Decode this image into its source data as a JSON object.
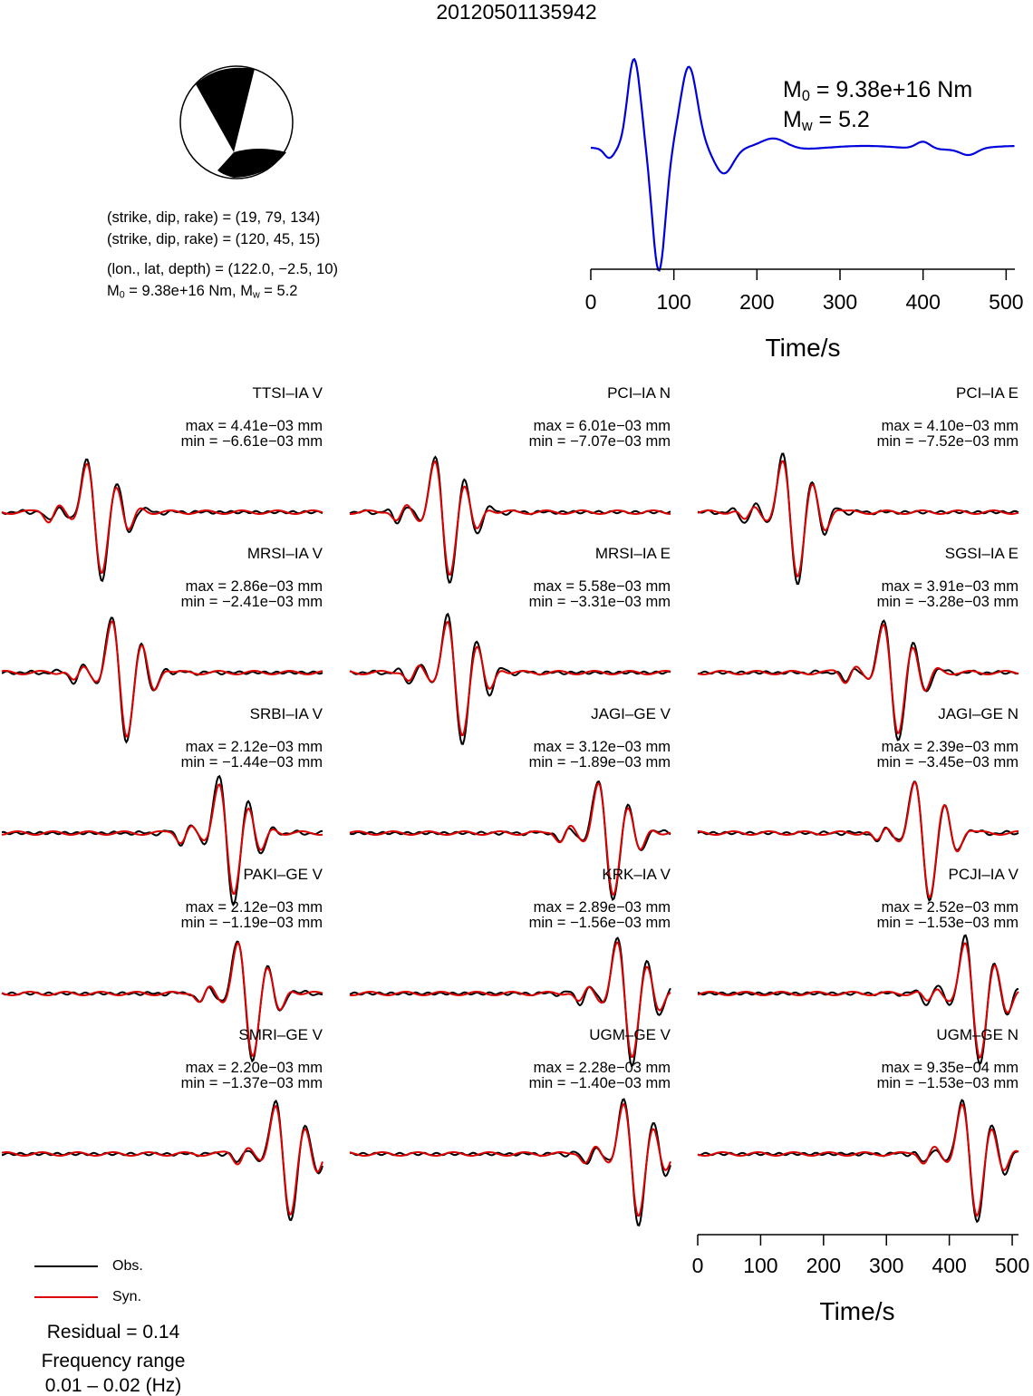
{
  "title": "20120501135942",
  "mechanism": {
    "line1": "(strike, dip, rake) = (19, 79, 134)",
    "line2": "(strike, dip, rake) = (120, 45, 15)",
    "line3": "(lon., lat, depth) = (122.0, −2.5, 10)",
    "m0_label": "M",
    "m0_value": " = 9.38e+16 Nm, M",
    "mw_value": " = 5.2"
  },
  "stf": {
    "m0_prefix": "M",
    "m0_sub": "0",
    "m0_text": " = 9.38e+16 Nm",
    "mw_prefix": "M",
    "mw_sub": "w",
    "mw_text": " = 5.2",
    "xlabel": "Time/s",
    "xticks": [
      "0",
      "100",
      "200",
      "300",
      "400",
      "500"
    ],
    "color": "#0000dd"
  },
  "chart_data": {
    "type": "line",
    "xlabel": "Time/s",
    "xlim": [
      0,
      510
    ],
    "xticks": [
      0,
      100,
      200,
      300,
      400,
      500
    ],
    "series_colors": {
      "Obs.": "#000000",
      "Syn.": "#dd0000"
    },
    "stations": [
      {
        "name": "TTSI–IA V",
        "max": "max = 4.41e−03 mm",
        "min": "min = −6.61e−03 mm",
        "center": 150
      },
      {
        "name": "PCI–IA N",
        "max": "max = 6.01e−03 mm",
        "min": "min = −7.07e−03 mm",
        "center": 150
      },
      {
        "name": "PCI–IA E",
        "max": "max = 4.10e−03 mm",
        "min": "min = −7.52e−03 mm",
        "center": 150
      },
      {
        "name": "MRSI–IA V",
        "max": "max = 2.86e−03 mm",
        "min": "min = −2.41e−03 mm",
        "center": 190
      },
      {
        "name": "MRSI–IA E",
        "max": "max = 5.58e−03 mm",
        "min": "min = −3.31e−03 mm",
        "center": 170
      },
      {
        "name": "SGSI–IA E",
        "max": "max = 3.91e−03 mm",
        "min": "min = −3.28e−03 mm",
        "center": 310
      },
      {
        "name": "SRBI–IA V",
        "max": "max = 2.12e−03 mm",
        "min": "min = −1.44e−03 mm",
        "center": 360
      },
      {
        "name": "JAGI–GE V",
        "max": "max = 3.12e−03 mm",
        "min": "min = −1.89e−03 mm",
        "center": 410
      },
      {
        "name": "JAGI–GE N",
        "max": "max = 2.39e−03 mm",
        "min": "min = −3.45e−03 mm",
        "center": 360
      },
      {
        "name": "PAKI–GE V",
        "max": "max = 2.12e−03 mm",
        "min": "min = −1.19e−03 mm",
        "center": 390
      },
      {
        "name": "KRK–IA V",
        "max": "max = 2.89e−03 mm",
        "min": "min = −1.56e−03 mm",
        "center": 440
      },
      {
        "name": "PCJI–IA V",
        "max": "max = 2.52e−03 mm",
        "min": "min = −1.53e−03 mm",
        "center": 440
      },
      {
        "name": "SMRI–GE V",
        "max": "max = 2.20e−03 mm",
        "min": "min = −1.37e−03 mm",
        "center": 450
      },
      {
        "name": "UGM–GE V",
        "max": "max = 2.28e−03 mm",
        "min": "min = −1.40e−03 mm",
        "center": 450
      },
      {
        "name": "UGM–GE N",
        "max": "max = 9.35e−04 mm",
        "min": "min = −1.53e−03 mm",
        "center": 435
      }
    ]
  },
  "legend": {
    "obs": "Obs.",
    "syn": "Syn."
  },
  "residual": "Residual = 0.14",
  "freq_label": "Frequency range",
  "freq_value": "0.01 – 0.02 (Hz)",
  "bottom_axis": {
    "xlabel": "Time/s",
    "xticks": [
      "0",
      "100",
      "200",
      "300",
      "400",
      "500"
    ]
  }
}
